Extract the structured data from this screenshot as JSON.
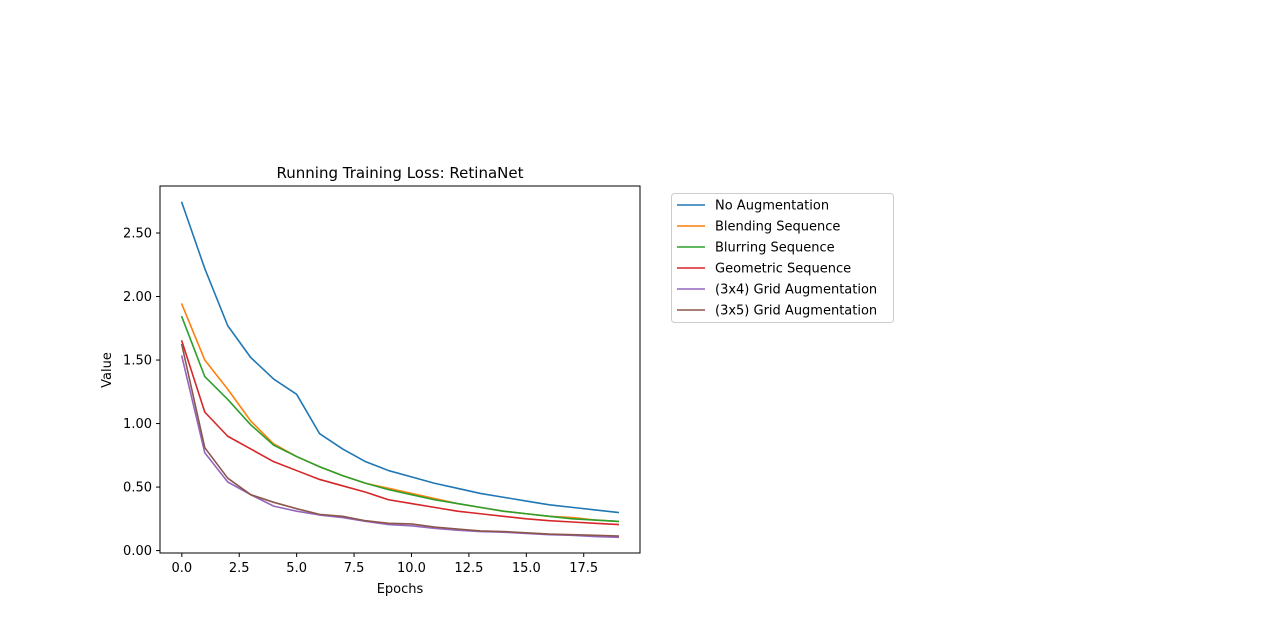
{
  "chart_data": {
    "type": "line",
    "title": "Running Training Loss: RetinaNet",
    "xlabel": "Epochs",
    "ylabel": "Value",
    "xlim": [
      -0.95,
      19.95
    ],
    "ylim": [
      -0.019,
      2.87
    ],
    "xticks": [
      0,
      2.5,
      5,
      7.5,
      10,
      12.5,
      15,
      17.5
    ],
    "xtick_labels": [
      "0.0",
      "2.5",
      "5.0",
      "7.5",
      "10.0",
      "12.5",
      "15.0",
      "17.5"
    ],
    "yticks": [
      0,
      0.5,
      1,
      1.5,
      2,
      2.5
    ],
    "ytick_labels": [
      "0.00",
      "0.50",
      "1.00",
      "1.50",
      "2.00",
      "2.50"
    ],
    "grid": false,
    "legend_placement": "outside-right-top",
    "x": [
      0,
      1,
      2,
      3,
      4,
      5,
      6,
      7,
      8,
      9,
      10,
      11,
      12,
      13,
      14,
      15,
      16,
      17,
      18,
      19
    ],
    "series": [
      {
        "name": "No Augmentation",
        "color": "#1f77b4",
        "values": [
          2.74,
          2.22,
          1.77,
          1.52,
          1.35,
          1.23,
          0.92,
          0.8,
          0.7,
          0.63,
          0.58,
          0.53,
          0.49,
          0.45,
          0.42,
          0.39,
          0.36,
          0.34,
          0.32,
          0.3
        ]
      },
      {
        "name": "Blending Sequence",
        "color": "#ff7f0e",
        "values": [
          1.94,
          1.5,
          1.27,
          1.02,
          0.84,
          0.74,
          0.66,
          0.59,
          0.53,
          0.49,
          0.45,
          0.41,
          0.37,
          0.34,
          0.31,
          0.29,
          0.27,
          0.26,
          0.24,
          0.23
        ]
      },
      {
        "name": "Blurring Sequence",
        "color": "#2ca02c",
        "values": [
          1.84,
          1.37,
          1.19,
          0.99,
          0.83,
          0.74,
          0.66,
          0.59,
          0.53,
          0.48,
          0.44,
          0.4,
          0.37,
          0.34,
          0.31,
          0.29,
          0.27,
          0.25,
          0.24,
          0.23
        ]
      },
      {
        "name": "Geometric Sequence",
        "color": "#d62728",
        "values": [
          1.65,
          1.09,
          0.9,
          0.8,
          0.7,
          0.63,
          0.56,
          0.51,
          0.46,
          0.4,
          0.37,
          0.34,
          0.31,
          0.29,
          0.27,
          0.25,
          0.235,
          0.225,
          0.215,
          0.205
        ]
      },
      {
        "name": "(3x4) Grid Augmentation",
        "color": "#9467bd",
        "values": [
          1.53,
          0.77,
          0.54,
          0.44,
          0.35,
          0.31,
          0.28,
          0.26,
          0.23,
          0.205,
          0.195,
          0.175,
          0.16,
          0.15,
          0.145,
          0.135,
          0.125,
          0.12,
          0.11,
          0.105
        ]
      },
      {
        "name": "(3x5) Grid Augmentation",
        "color": "#8c564b",
        "values": [
          1.62,
          0.81,
          0.57,
          0.44,
          0.38,
          0.33,
          0.285,
          0.27,
          0.235,
          0.215,
          0.21,
          0.185,
          0.17,
          0.155,
          0.15,
          0.14,
          0.13,
          0.125,
          0.12,
          0.115
        ]
      }
    ]
  }
}
